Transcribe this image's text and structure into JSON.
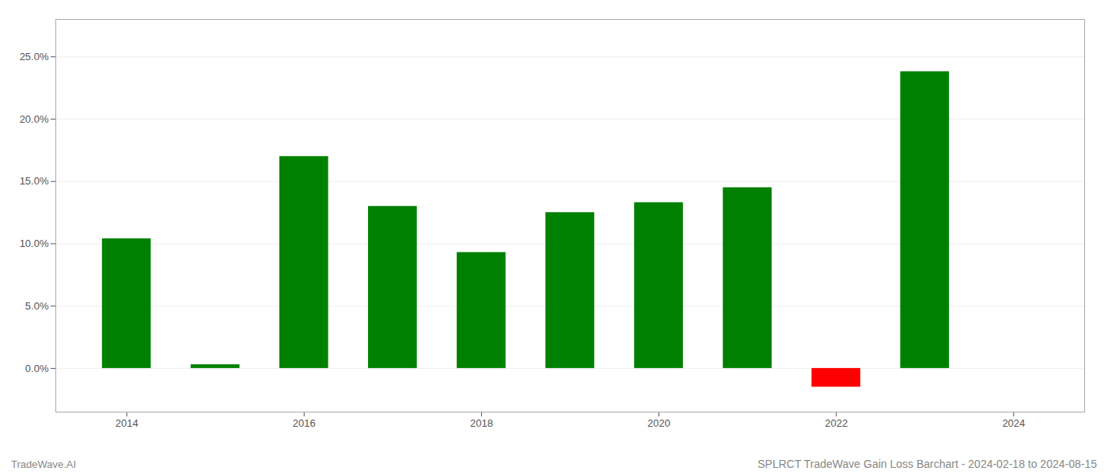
{
  "chart_data": {
    "type": "bar",
    "title": "SPLRCT TradeWave Gain Loss Barchart - 2024-02-18 to 2024-08-15",
    "annotations": [
      "TradeWave.AI"
    ],
    "x": [
      2014,
      2015,
      2016,
      2017,
      2018,
      2019,
      2020,
      2021,
      2022,
      2023
    ],
    "values": [
      0.104,
      0.003,
      0.17,
      0.13,
      0.093,
      0.125,
      0.133,
      0.145,
      -0.015,
      0.238
    ],
    "colors": [
      "#008000",
      "#008000",
      "#008000",
      "#008000",
      "#008000",
      "#008000",
      "#008000",
      "#008000",
      "#ff0000",
      "#008000"
    ],
    "xlim": [
      2013.2,
      2024.8
    ],
    "xticks": [
      2014,
      2016,
      2018,
      2020,
      2022,
      2024
    ],
    "ylim": [
      -0.035,
      0.28
    ],
    "yticks": [
      {
        "value": 0.0,
        "label": "0.0%"
      },
      {
        "value": 0.05,
        "label": "5.0%"
      },
      {
        "value": 0.1,
        "label": "10.0%"
      },
      {
        "value": 0.15,
        "label": "15.0%"
      },
      {
        "value": 0.2,
        "label": "20.0%"
      },
      {
        "value": 0.25,
        "label": "25.0%"
      }
    ],
    "grid": true
  }
}
